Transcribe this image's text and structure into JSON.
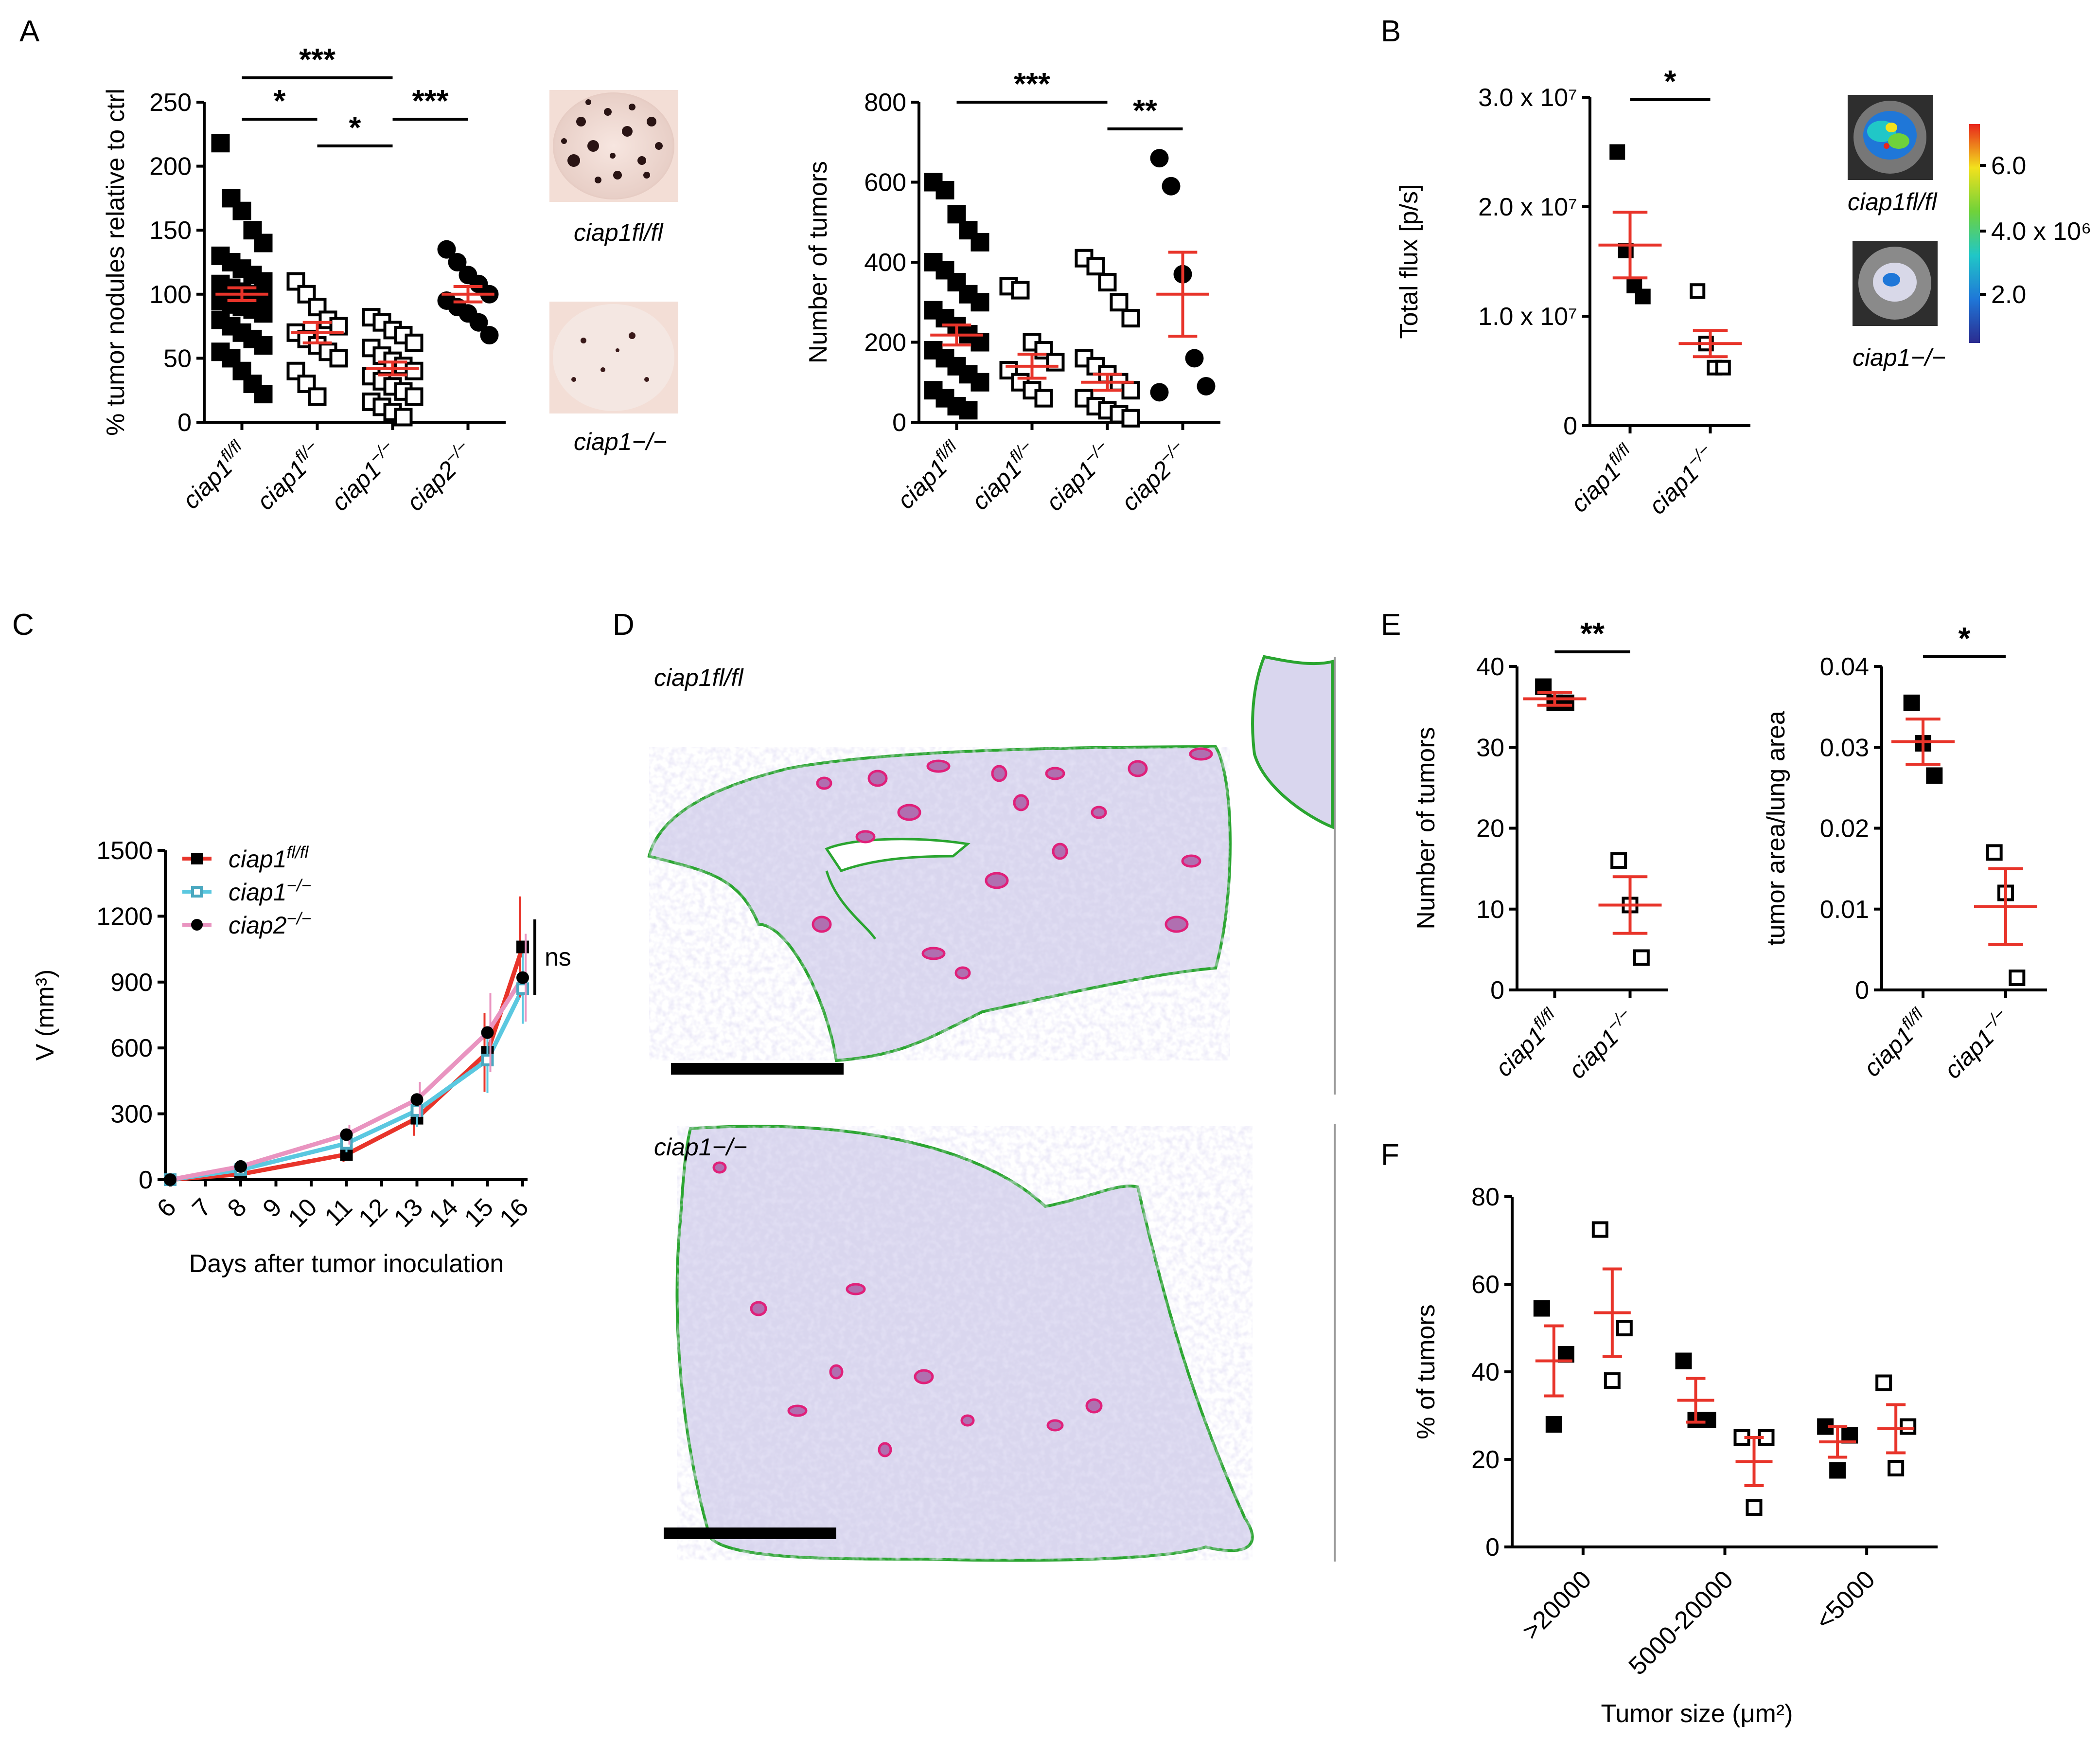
{
  "panels": {
    "A": "A",
    "B": "B",
    "C": "C",
    "D": "D",
    "E": "E",
    "F": "F"
  },
  "colors": {
    "mean_bar": "#e8342a",
    "ciap1_fl": "#e8342a",
    "ciap1_ko": "#5bc8e0",
    "ciap2_ko": "#e994c0",
    "tumor": "#e0207a",
    "lung_outline": "#2aa530",
    "tissue": "#c9c5e6"
  },
  "images": {
    "lung_fl_label": "ciap1fl/fl",
    "lung_ko_label": "ciap1−/−",
    "bli_fl_label": "ciap1fl/fl",
    "bli_ko_label": "ciap1−/−",
    "colorbar_ticks": [
      "6.0",
      "4.0 x 10⁶",
      "2.0"
    ],
    "hist_fl_label": "ciap1fl/fl",
    "hist_ko_label": "ciap1−/−"
  },
  "chart_data": [
    {
      "id": "A1",
      "type": "scatter",
      "ylabel": "% tumor nodules relative to ctrl",
      "ylim": [
        0,
        250
      ],
      "yticks": [
        "0",
        "50",
        "100",
        "150",
        "200",
        "250"
      ],
      "categories": [
        "ciap1fl/fl",
        "ciap1fl/−",
        "ciap1−/−",
        "ciap2−/−"
      ],
      "means": [
        100,
        70,
        42,
        100
      ],
      "sem": [
        5,
        8,
        5,
        6
      ],
      "markers": [
        "filled-square",
        "open-square",
        "open-square",
        "filled-circle"
      ],
      "points": [
        [
          218,
          175,
          165,
          150,
          140,
          130,
          125,
          120,
          115,
          110,
          108,
          105,
          102,
          100,
          98,
          95,
          92,
          90,
          88,
          85,
          80,
          75,
          70,
          65,
          60,
          55,
          50,
          40,
          30,
          22
        ],
        [
          110,
          100,
          90,
          80,
          75,
          70,
          65,
          60,
          55,
          50,
          40,
          30,
          20
        ],
        [
          82,
          78,
          72,
          68,
          62,
          58,
          52,
          48,
          44,
          40,
          36,
          32,
          28,
          24,
          20,
          16,
          12,
          8,
          4
        ],
        [
          135,
          125,
          115,
          108,
          100,
          95,
          90,
          85,
          78,
          68
        ]
      ],
      "significance": [
        {
          "pair": [
            "ciap1fl/fl",
            "ciap1−/−"
          ],
          "label": "***"
        },
        {
          "pair": [
            "ciap1fl/fl",
            "ciap1fl/−"
          ],
          "label": "*"
        },
        {
          "pair": [
            "ciap1fl/−",
            "ciap1−/−"
          ],
          "label": "*"
        },
        {
          "pair": [
            "ciap1−/−",
            "ciap2−/−"
          ],
          "label": "***"
        }
      ]
    },
    {
      "id": "A2",
      "type": "scatter",
      "ylabel": "Number of tumors",
      "ylim": [
        0,
        800
      ],
      "yticks": [
        "0",
        "200",
        "400",
        "600",
        "800"
      ],
      "categories": [
        "ciap1fl/fl",
        "ciap1fl/−",
        "ciap1−/−",
        "ciap2−/−"
      ],
      "means": [
        218,
        140,
        100,
        320
      ],
      "sem": [
        25,
        30,
        20,
        105
      ],
      "markers": [
        "filled-square",
        "open-square",
        "open-square",
        "filled-circle"
      ],
      "points": [
        [
          600,
          580,
          520,
          480,
          450,
          400,
          380,
          350,
          320,
          300,
          280,
          260,
          240,
          220,
          200,
          180,
          160,
          140,
          120,
          100,
          80,
          60,
          40,
          30
        ],
        [
          340,
          330,
          200,
          180,
          150,
          130,
          100,
          80,
          60
        ],
        [
          410,
          390,
          350,
          300,
          260,
          160,
          140,
          120,
          100,
          80,
          60,
          40,
          30,
          20,
          10
        ],
        [
          660,
          590,
          370,
          160,
          90,
          75
        ]
      ],
      "significance": [
        {
          "pair": [
            "ciap1fl/fl",
            "ciap1−/−"
          ],
          "label": "***"
        },
        {
          "pair": [
            "ciap1−/−",
            "ciap2−/−"
          ],
          "label": "**"
        }
      ]
    },
    {
      "id": "B",
      "type": "scatter",
      "ylabel": "Total flux [p/s]",
      "ylim": [
        0,
        30000000
      ],
      "yticks": [
        "0",
        "1.0 x 10⁷",
        "2.0 x 10⁷",
        "3.0 x 10⁷"
      ],
      "categories": [
        "ciap1fl/fl",
        "ciap1−/−"
      ],
      "means": [
        16500000,
        7500000
      ],
      "sem": [
        3000000,
        1200000
      ],
      "markers": [
        "filled-square",
        "open-square"
      ],
      "points": [
        [
          25000000,
          16000000,
          12800000,
          11800000
        ],
        [
          12300000,
          7500000,
          5300000,
          5300000
        ]
      ],
      "significance": [
        {
          "pair": [
            "ciap1fl/fl",
            "ciap1−/−"
          ],
          "label": "*"
        }
      ]
    },
    {
      "id": "C",
      "type": "line",
      "xlabel": "Days after tumor inoculation",
      "ylabel": "V (mm³)",
      "ylim": [
        0,
        1500
      ],
      "xlim": [
        6,
        16
      ],
      "yticks": [
        "0",
        "300",
        "600",
        "900",
        "1200",
        "1500"
      ],
      "xticks": [
        "6",
        "7",
        "8",
        "9",
        "10",
        "11",
        "12",
        "13",
        "14",
        "15",
        "16"
      ],
      "x": [
        6,
        8,
        11,
        13,
        15,
        16
      ],
      "series": [
        {
          "name": "ciap1fl/fl",
          "marker": "filled-square",
          "values": [
            0,
            25,
            115,
            280,
            580,
            1060
          ],
          "err": [
            5,
            10,
            35,
            80,
            180,
            230
          ]
        },
        {
          "name": "ciap1−/−",
          "marker": "open-square",
          "values": [
            0,
            45,
            165,
            315,
            545,
            870
          ],
          "err": [
            5,
            10,
            40,
            75,
            150,
            160
          ]
        },
        {
          "name": "ciap2−/−",
          "marker": "filled-circle",
          "values": [
            0,
            60,
            205,
            365,
            670,
            920
          ],
          "err": [
            5,
            12,
            45,
            80,
            180,
            200
          ]
        }
      ],
      "annotation": "ns"
    },
    {
      "id": "E1",
      "type": "scatter",
      "ylabel": "Number of tumors",
      "ylim": [
        0,
        40
      ],
      "yticks": [
        "0",
        "10",
        "20",
        "30",
        "40"
      ],
      "categories": [
        "ciap1fl/fl",
        "ciap1−/−"
      ],
      "means": [
        36,
        10.5
      ],
      "sem": [
        0.8,
        3.5
      ],
      "markers": [
        "filled-square",
        "open-square"
      ],
      "points": [
        [
          37.5,
          35.5,
          35.5
        ],
        [
          16,
          10.5,
          4
        ]
      ],
      "significance": [
        {
          "pair": [
            "ciap1fl/fl",
            "ciap1−/−"
          ],
          "label": "**"
        }
      ]
    },
    {
      "id": "E2",
      "type": "scatter",
      "ylabel": "tumor area/lung area",
      "ylim": [
        0,
        0.04
      ],
      "yticks": [
        "0",
        "0.01",
        "0.02",
        "0.03",
        "0.04"
      ],
      "categories": [
        "ciap1fl/fl",
        "ciap1−/−"
      ],
      "means": [
        0.0307,
        0.0103
      ],
      "sem": [
        0.0028,
        0.0047
      ],
      "markers": [
        "filled-square",
        "open-square"
      ],
      "points": [
        [
          0.0355,
          0.0305,
          0.0265
        ],
        [
          0.017,
          0.012,
          0.0015
        ]
      ],
      "significance": [
        {
          "pair": [
            "ciap1fl/fl",
            "ciap1−/−"
          ],
          "label": "*"
        }
      ]
    },
    {
      "id": "F",
      "type": "scatter",
      "xlabel": "Tumor size (μm²)",
      "ylabel": "% of tumors",
      "ylim": [
        0,
        80
      ],
      "yticks": [
        "0",
        "20",
        "40",
        "60",
        "80"
      ],
      "categories": [
        ">20000",
        "5000-20000",
        "<5000"
      ],
      "series": [
        {
          "name": "ciap1fl/fl",
          "marker": "filled-square",
          "means": [
            42.5,
            33.5,
            24
          ],
          "sem": [
            8,
            5,
            3.5
          ],
          "points": [
            [
              54.5,
              44,
              28
            ],
            [
              42.5,
              29,
              29
            ],
            [
              27.5,
              25.5,
              17.5
            ]
          ]
        },
        {
          "name": "ciap1−/−",
          "marker": "open-square",
          "means": [
            53.5,
            19.5,
            27
          ],
          "sem": [
            10,
            5.5,
            5.5
          ],
          "points": [
            [
              72.5,
              50,
              38
            ],
            [
              25,
              25,
              9
            ],
            [
              37.5,
              27.5,
              18
            ]
          ]
        }
      ]
    }
  ]
}
